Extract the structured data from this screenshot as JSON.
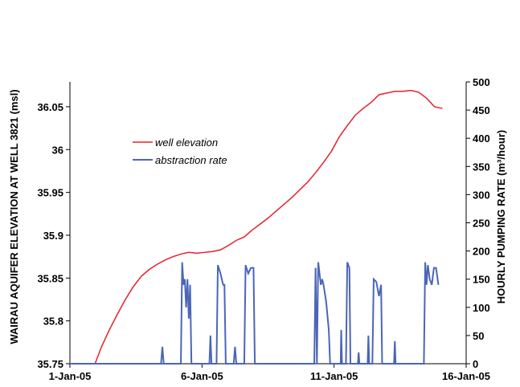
{
  "chart_data": {
    "type": "line",
    "ylabel": "WAIRAU AQUIFER ELEVATION AT WELL 3821 (msl)",
    "y2label": "HOURLY PUMPING RATE (m³/hour)",
    "xlim": [
      0,
      15
    ],
    "xticks": [
      {
        "value": 0,
        "label": "1-Jan-05"
      },
      {
        "value": 5,
        "label": "6-Jan-05"
      },
      {
        "value": 10,
        "label": "11-Jan-05"
      },
      {
        "value": 15,
        "label": "16-Jan-05"
      }
    ],
    "ylim": [
      35.75,
      36.079
    ],
    "yticks": [
      35.75,
      35.8,
      35.85,
      35.9,
      35.95,
      36,
      36.05
    ],
    "y2lim": [
      0,
      500
    ],
    "y2ticks": [
      0,
      50,
      100,
      150,
      200,
      250,
      300,
      350,
      400,
      450,
      500
    ],
    "legend": "upper-left",
    "series": [
      {
        "name": "well elevation",
        "color": "#e8202a",
        "x": [
          0.95,
          1.2,
          1.5,
          1.8,
          2.1,
          2.4,
          2.7,
          3.0,
          3.3,
          3.6,
          3.9,
          4.2,
          4.5,
          4.8,
          5.1,
          5.4,
          5.7,
          6.0,
          6.3,
          6.6,
          6.9,
          7.2,
          7.5,
          7.8,
          8.1,
          8.4,
          8.7,
          9.0,
          9.3,
          9.6,
          9.9,
          10.2,
          10.5,
          10.8,
          11.1,
          11.4,
          11.7,
          12.0,
          12.3,
          12.6,
          12.9,
          13.2,
          13.5,
          13.8,
          14.1
        ],
        "values": [
          35.75,
          35.77,
          35.79,
          35.808,
          35.825,
          35.84,
          35.852,
          35.86,
          35.866,
          35.871,
          35.875,
          35.878,
          35.88,
          35.879,
          35.88,
          35.881,
          35.883,
          35.888,
          35.894,
          35.898,
          35.906,
          35.913,
          35.92,
          35.928,
          35.936,
          35.944,
          35.953,
          35.962,
          35.973,
          35.985,
          35.998,
          36.015,
          36.028,
          36.04,
          36.048,
          36.055,
          36.064,
          36.066,
          36.068,
          36.068,
          36.069,
          36.067,
          36.06,
          36.05,
          36.048
        ]
      },
      {
        "name": "abstraction rate",
        "color": "#4a66b8",
        "axis": "y2",
        "x": [
          0,
          3.45,
          3.5,
          3.55,
          4.2,
          4.25,
          4.3,
          4.35,
          4.4,
          4.45,
          4.5,
          4.55,
          4.6,
          5.28,
          5.32,
          5.36,
          5.55,
          5.6,
          5.7,
          5.8,
          5.85,
          5.9,
          6.2,
          6.25,
          6.3,
          6.6,
          6.65,
          6.75,
          6.85,
          6.95,
          7.0,
          9.25,
          9.3,
          9.35,
          9.4,
          9.5,
          9.55,
          9.6,
          9.7,
          9.8,
          9.85,
          10.25,
          10.27,
          10.3,
          10.45,
          10.5,
          10.58,
          10.62,
          10.9,
          10.93,
          10.96,
          11.27,
          11.3,
          11.33,
          11.45,
          11.5,
          11.6,
          11.7,
          11.78,
          11.82,
          12.27,
          12.3,
          12.33,
          13.4,
          13.45,
          13.5,
          13.55,
          13.62,
          13.7,
          13.78,
          13.86,
          13.95
        ],
        "values": [
          0,
          0,
          30,
          0,
          0,
          180,
          140,
          150,
          100,
          150,
          80,
          140,
          0,
          0,
          50,
          0,
          0,
          175,
          160,
          140,
          140,
          0,
          0,
          30,
          0,
          0,
          175,
          160,
          170,
          170,
          0,
          0,
          170,
          0,
          180,
          140,
          150,
          140,
          110,
          60,
          0,
          0,
          60,
          0,
          0,
          180,
          170,
          0,
          0,
          20,
          0,
          0,
          50,
          0,
          0,
          150,
          145,
          120,
          140,
          0,
          0,
          40,
          0,
          0,
          180,
          140,
          175,
          150,
          140,
          170,
          170,
          140
        ]
      }
    ]
  }
}
